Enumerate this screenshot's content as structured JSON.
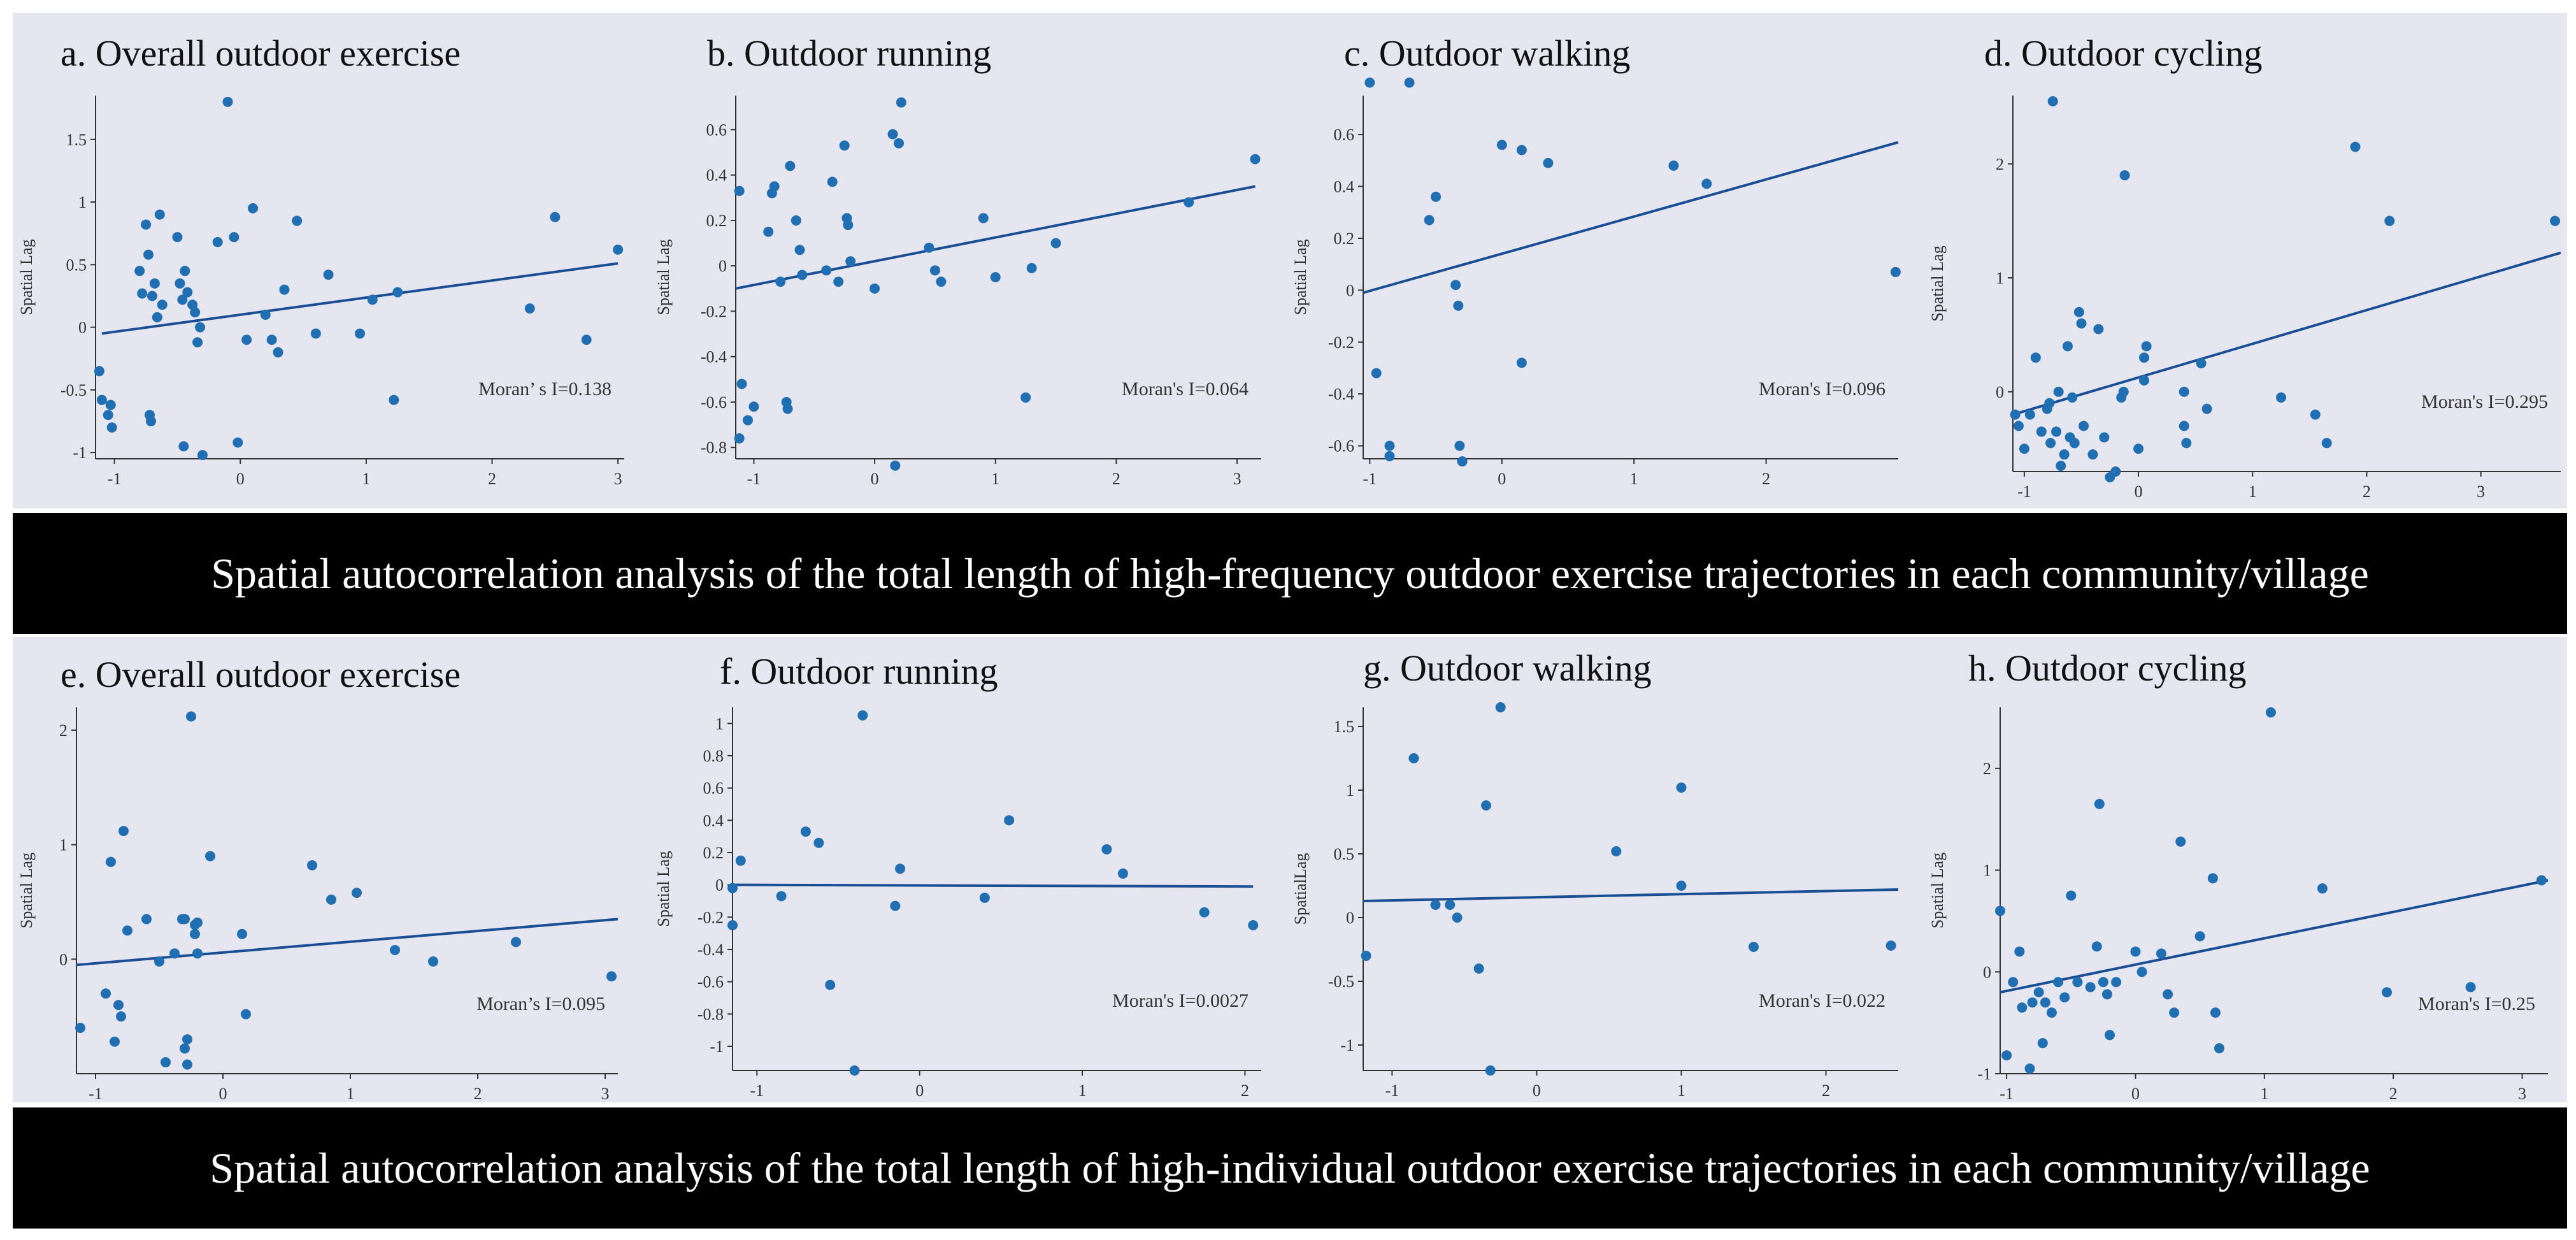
{
  "colors": {
    "point": "#1f6fb2",
    "line": "#1a4f96",
    "background": "#e6e6f0",
    "caption_bg": "#000000",
    "caption_text": "#ffffff"
  },
  "captions": {
    "top": "Spatial autocorrelation analysis of the total length of high-frequency outdoor exercise trajectories in each community/village",
    "bottom": "Spatial autocorrelation analysis of the total length of high-individual outdoor exercise trajectories in each community/village"
  },
  "chart_data": [
    {
      "type": "scatter",
      "title": "a. Overall outdoor exercise",
      "ylabel": "Spatial Lag",
      "xlim": [
        -1.15,
        3.05
      ],
      "ylim": [
        -1.05,
        1.85
      ],
      "xticks": [
        -1,
        0,
        1,
        2,
        3
      ],
      "yticks": [
        -1,
        -0.5,
        0,
        0.5,
        1,
        1.5
      ],
      "annotation": "Moran’ s I=0.138",
      "regression": [
        [
          -1.1,
          -0.05
        ],
        [
          3.0,
          0.51
        ]
      ],
      "points": [
        [
          -1.12,
          -0.35
        ],
        [
          -1.1,
          -0.58
        ],
        [
          -1.05,
          -0.7
        ],
        [
          -1.03,
          -0.62
        ],
        [
          -1.02,
          -0.8
        ],
        [
          -0.8,
          0.45
        ],
        [
          -0.78,
          0.27
        ],
        [
          -0.75,
          0.82
        ],
        [
          -0.73,
          0.58
        ],
        [
          -0.72,
          -0.7
        ],
        [
          -0.71,
          -0.75
        ],
        [
          -0.7,
          0.25
        ],
        [
          -0.68,
          0.35
        ],
        [
          -0.66,
          0.08
        ],
        [
          -0.64,
          0.9
        ],
        [
          -0.62,
          0.18
        ],
        [
          -0.5,
          0.72
        ],
        [
          -0.48,
          0.35
        ],
        [
          -0.46,
          0.22
        ],
        [
          -0.44,
          0.45
        ],
        [
          -0.42,
          0.28
        ],
        [
          -0.38,
          0.18
        ],
        [
          -0.36,
          0.12
        ],
        [
          -0.34,
          -0.12
        ],
        [
          -0.32,
          0.0
        ],
        [
          -0.3,
          -1.02
        ],
        [
          -0.45,
          -0.95
        ],
        [
          -0.18,
          0.68
        ],
        [
          -0.1,
          1.8
        ],
        [
          -0.05,
          0.72
        ],
        [
          -0.02,
          -0.92
        ],
        [
          0.05,
          -0.1
        ],
        [
          0.1,
          0.95
        ],
        [
          0.2,
          0.1
        ],
        [
          0.25,
          -0.1
        ],
        [
          0.3,
          -0.2
        ],
        [
          0.35,
          0.3
        ],
        [
          0.45,
          0.85
        ],
        [
          0.6,
          -0.05
        ],
        [
          0.7,
          0.42
        ],
        [
          0.95,
          -0.05
        ],
        [
          1.05,
          0.22
        ],
        [
          1.22,
          -0.58
        ],
        [
          1.25,
          0.28
        ],
        [
          2.3,
          0.15
        ],
        [
          2.5,
          0.88
        ],
        [
          2.75,
          -0.1
        ],
        [
          3.0,
          0.62
        ]
      ]
    },
    {
      "type": "scatter",
      "title": "b. Outdoor running",
      "ylabel": "Spatial Lag",
      "xlim": [
        -1.15,
        3.2
      ],
      "ylim": [
        -0.85,
        0.75
      ],
      "xticks": [
        -1,
        0,
        1,
        2,
        3
      ],
      "yticks": [
        -0.8,
        -0.6,
        -0.4,
        -0.2,
        0,
        0.2,
        0.4,
        0.6
      ],
      "annotation": "Moran's I=0.064",
      "regression": [
        [
          -1.15,
          -0.1
        ],
        [
          3.15,
          0.35
        ]
      ],
      "points": [
        [
          -1.12,
          0.33
        ],
        [
          -1.1,
          -0.52
        ],
        [
          -1.12,
          -0.76
        ],
        [
          -1.05,
          -0.68
        ],
        [
          -1.0,
          -0.62
        ],
        [
          -0.88,
          0.15
        ],
        [
          -0.85,
          0.32
        ],
        [
          -0.83,
          0.35
        ],
        [
          -0.78,
          -0.07
        ],
        [
          -0.73,
          -0.6
        ],
        [
          -0.72,
          -0.63
        ],
        [
          -0.7,
          0.44
        ],
        [
          -0.65,
          0.2
        ],
        [
          -0.62,
          0.07
        ],
        [
          -0.6,
          -0.04
        ],
        [
          -0.4,
          -0.02
        ],
        [
          -0.35,
          0.37
        ],
        [
          -0.3,
          -0.07
        ],
        [
          -0.25,
          0.53
        ],
        [
          -0.23,
          0.21
        ],
        [
          -0.22,
          0.18
        ],
        [
          -0.2,
          0.02
        ],
        [
          0.0,
          -0.1
        ],
        [
          0.15,
          0.58
        ],
        [
          0.2,
          0.54
        ],
        [
          0.22,
          0.72
        ],
        [
          0.17,
          -0.88
        ],
        [
          0.45,
          0.08
        ],
        [
          0.5,
          -0.02
        ],
        [
          0.55,
          -0.07
        ],
        [
          0.9,
          0.21
        ],
        [
          1.0,
          -0.05
        ],
        [
          1.25,
          -0.58
        ],
        [
          1.3,
          -0.01
        ],
        [
          1.5,
          0.1
        ],
        [
          2.6,
          0.28
        ],
        [
          3.15,
          0.47
        ]
      ]
    },
    {
      "type": "scatter",
      "title": "c. Outdoor walking",
      "ylabel": "Spatial Lag",
      "xlim": [
        -1.05,
        3.0
      ],
      "ylim": [
        -0.65,
        0.75
      ],
      "xticks": [
        -1,
        0,
        1,
        2
      ],
      "yticks": [
        -0.6,
        -0.4,
        -0.2,
        0,
        0.2,
        0.4,
        0.6
      ],
      "annotation": "Moran's I=0.096",
      "regression": [
        [
          -1.05,
          -0.01
        ],
        [
          3.0,
          0.57
        ]
      ],
      "points": [
        [
          -1.0,
          0.8
        ],
        [
          -0.95,
          -0.32
        ],
        [
          -0.85,
          -0.6
        ],
        [
          -0.85,
          -0.64
        ],
        [
          -0.7,
          0.8
        ],
        [
          -0.55,
          0.27
        ],
        [
          -0.5,
          0.36
        ],
        [
          -0.35,
          0.02
        ],
        [
          -0.33,
          -0.06
        ],
        [
          -0.32,
          -0.6
        ],
        [
          -0.3,
          -0.66
        ],
        [
          0.0,
          0.56
        ],
        [
          0.15,
          0.54
        ],
        [
          0.15,
          -0.28
        ],
        [
          0.35,
          0.49
        ],
        [
          1.3,
          0.48
        ],
        [
          1.55,
          0.41
        ],
        [
          2.98,
          0.07
        ]
      ]
    },
    {
      "type": "scatter",
      "title": "d. Outdoor cycling",
      "ylabel": "Spatial Lag",
      "xlim": [
        -1.1,
        3.7
      ],
      "ylim": [
        -0.7,
        2.6
      ],
      "xticks": [
        -1,
        0,
        1,
        2,
        3
      ],
      "yticks": [
        0,
        1,
        2
      ],
      "annotation": "Moran's I=0.295",
      "regression": [
        [
          -1.1,
          -0.2
        ],
        [
          3.7,
          1.22
        ]
      ],
      "points": [
        [
          -1.08,
          -0.2
        ],
        [
          -1.05,
          -0.3
        ],
        [
          -1.0,
          -0.5
        ],
        [
          -0.95,
          -0.2
        ],
        [
          -0.9,
          0.3
        ],
        [
          -0.85,
          -0.35
        ],
        [
          -0.8,
          -0.15
        ],
        [
          -0.78,
          -0.1
        ],
        [
          -0.77,
          -0.45
        ],
        [
          -0.75,
          2.55
        ],
        [
          -0.72,
          -0.35
        ],
        [
          -0.7,
          0.0
        ],
        [
          -0.68,
          -0.65
        ],
        [
          -0.65,
          -0.55
        ],
        [
          -0.62,
          0.4
        ],
        [
          -0.6,
          -0.4
        ],
        [
          -0.58,
          -0.05
        ],
        [
          -0.56,
          -0.45
        ],
        [
          -0.52,
          0.7
        ],
        [
          -0.5,
          0.6
        ],
        [
          -0.48,
          -0.3
        ],
        [
          -0.4,
          -0.55
        ],
        [
          -0.35,
          0.55
        ],
        [
          -0.3,
          -0.4
        ],
        [
          -0.25,
          -0.75
        ],
        [
          -0.2,
          -0.7
        ],
        [
          -0.15,
          -0.05
        ],
        [
          -0.13,
          0.0
        ],
        [
          -0.12,
          1.9
        ],
        [
          0.0,
          -0.5
        ],
        [
          0.05,
          0.3
        ],
        [
          0.07,
          0.4
        ],
        [
          0.05,
          0.1
        ],
        [
          0.4,
          -0.3
        ],
        [
          0.42,
          -0.45
        ],
        [
          0.4,
          0.0
        ],
        [
          0.55,
          0.25
        ],
        [
          0.6,
          -0.15
        ],
        [
          1.25,
          -0.05
        ],
        [
          1.55,
          -0.2
        ],
        [
          1.65,
          -0.45
        ],
        [
          1.9,
          2.15
        ],
        [
          2.2,
          1.5
        ],
        [
          3.65,
          1.5
        ]
      ]
    },
    {
      "type": "scatter",
      "title": "e. Overall outdoor exercise",
      "ylabel": "Spatial Lag",
      "xlim": [
        -1.15,
        3.1
      ],
      "ylim": [
        -1.0,
        2.2
      ],
      "xticks": [
        -1,
        0,
        1,
        2,
        3
      ],
      "yticks": [
        0,
        1,
        2
      ],
      "annotation": "Moran’s I=0.095",
      "regression": [
        [
          -1.15,
          -0.05
        ],
        [
          3.1,
          0.35
        ]
      ],
      "points": [
        [
          -1.12,
          -0.6
        ],
        [
          -0.92,
          -0.3
        ],
        [
          -0.88,
          0.85
        ],
        [
          -0.85,
          -0.72
        ],
        [
          -0.82,
          -0.4
        ],
        [
          -0.8,
          -0.5
        ],
        [
          -0.78,
          1.12
        ],
        [
          -0.75,
          0.25
        ],
        [
          -0.6,
          0.35
        ],
        [
          -0.5,
          -0.02
        ],
        [
          -0.45,
          -0.9
        ],
        [
          -0.38,
          0.05
        ],
        [
          -0.32,
          0.35
        ],
        [
          -0.3,
          0.35
        ],
        [
          -0.28,
          -0.7
        ],
        [
          -0.3,
          -0.78
        ],
        [
          -0.28,
          -0.92
        ],
        [
          -0.25,
          2.12
        ],
        [
          -0.22,
          0.22
        ],
        [
          -0.22,
          0.3
        ],
        [
          -0.2,
          0.32
        ],
        [
          -0.2,
          0.05
        ],
        [
          -0.1,
          0.9
        ],
        [
          0.15,
          0.22
        ],
        [
          0.18,
          -0.48
        ],
        [
          0.7,
          0.82
        ],
        [
          0.85,
          0.52
        ],
        [
          1.05,
          0.58
        ],
        [
          1.35,
          0.08
        ],
        [
          1.65,
          -0.02
        ],
        [
          2.3,
          0.15
        ],
        [
          3.05,
          -0.15
        ]
      ]
    },
    {
      "type": "scatter",
      "title": "f. Outdoor running",
      "ylabel": "Spatial Lag",
      "xlim": [
        -1.15,
        2.1
      ],
      "ylim": [
        -1.15,
        1.1
      ],
      "xticks": [
        -1,
        0,
        1,
        2
      ],
      "yticks": [
        -1,
        -0.8,
        -0.6,
        -0.4,
        -0.2,
        0,
        0.2,
        0.4,
        0.6,
        0.8,
        1
      ],
      "annotation": "Moran's I=0.0027",
      "regression": [
        [
          -1.15,
          0.0
        ],
        [
          2.05,
          -0.01
        ]
      ],
      "points": [
        [
          -1.15,
          -0.02
        ],
        [
          -1.15,
          -0.25
        ],
        [
          -1.1,
          0.15
        ],
        [
          -0.85,
          -0.07
        ],
        [
          -0.7,
          0.33
        ],
        [
          -0.62,
          0.26
        ],
        [
          -0.55,
          -0.62
        ],
        [
          -0.4,
          -1.15
        ],
        [
          -0.35,
          1.05
        ],
        [
          -0.15,
          -0.13
        ],
        [
          -0.12,
          0.1
        ],
        [
          0.4,
          -0.08
        ],
        [
          0.55,
          0.4
        ],
        [
          1.15,
          0.22
        ],
        [
          1.25,
          0.07
        ],
        [
          1.75,
          -0.17
        ],
        [
          2.05,
          -0.25
        ]
      ]
    },
    {
      "type": "scatter",
      "title": "g. Outdoor walking",
      "ylabel": "SpatialLag",
      "xlim": [
        -1.2,
        2.5
      ],
      "ylim": [
        -1.2,
        1.65
      ],
      "xticks": [
        -1,
        0,
        1,
        2
      ],
      "yticks": [
        -1,
        -0.5,
        0,
        0.5,
        1,
        1.5
      ],
      "annotation": "Moran's I=0.022",
      "regression": [
        [
          -1.2,
          0.13
        ],
        [
          2.5,
          0.22
        ]
      ],
      "points": [
        [
          -1.18,
          -0.3
        ],
        [
          -0.85,
          1.25
        ],
        [
          -0.7,
          0.1
        ],
        [
          -0.6,
          0.1
        ],
        [
          -0.55,
          0.0
        ],
        [
          -0.4,
          -0.4
        ],
        [
          -0.35,
          0.88
        ],
        [
          -0.32,
          -1.2
        ],
        [
          -0.25,
          1.65
        ],
        [
          0.55,
          0.52
        ],
        [
          1.0,
          1.02
        ],
        [
          1.0,
          0.25
        ],
        [
          1.5,
          -0.23
        ],
        [
          2.45,
          -0.22
        ]
      ]
    },
    {
      "type": "scatter",
      "title": "h. Outdoor cycling",
      "ylabel": "Spatial Lag",
      "xlim": [
        -1.05,
        3.2
      ],
      "ylim": [
        -1.0,
        2.6
      ],
      "xticks": [
        -1,
        0,
        1,
        2,
        3
      ],
      "yticks": [
        -1,
        0,
        1,
        2
      ],
      "annotation": "Moran's I=0.25",
      "regression": [
        [
          -1.05,
          -0.2
        ],
        [
          3.2,
          0.9
        ]
      ],
      "points": [
        [
          -1.05,
          0.6
        ],
        [
          -1.0,
          -0.82
        ],
        [
          -0.95,
          -0.1
        ],
        [
          -0.9,
          0.2
        ],
        [
          -0.88,
          -0.35
        ],
        [
          -0.82,
          -0.95
        ],
        [
          -0.8,
          -0.3
        ],
        [
          -0.75,
          -0.2
        ],
        [
          -0.72,
          -0.7
        ],
        [
          -0.7,
          -0.3
        ],
        [
          -0.65,
          -0.4
        ],
        [
          -0.6,
          -0.1
        ],
        [
          -0.55,
          -0.25
        ],
        [
          -0.5,
          0.75
        ],
        [
          -0.45,
          -0.1
        ],
        [
          -0.35,
          -0.15
        ],
        [
          -0.3,
          0.25
        ],
        [
          -0.28,
          1.65
        ],
        [
          -0.25,
          -0.1
        ],
        [
          -0.22,
          -0.22
        ],
        [
          -0.2,
          -0.62
        ],
        [
          -0.15,
          -0.1
        ],
        [
          0.0,
          0.2
        ],
        [
          0.05,
          0.0
        ],
        [
          0.2,
          0.18
        ],
        [
          0.25,
          -0.22
        ],
        [
          0.3,
          -0.4
        ],
        [
          0.35,
          1.28
        ],
        [
          0.5,
          0.35
        ],
        [
          0.6,
          0.92
        ],
        [
          0.62,
          -0.4
        ],
        [
          0.65,
          -0.75
        ],
        [
          1.05,
          2.55
        ],
        [
          1.45,
          0.82
        ],
        [
          1.95,
          -0.2
        ],
        [
          2.6,
          -0.15
        ],
        [
          3.15,
          0.9
        ]
      ]
    }
  ]
}
